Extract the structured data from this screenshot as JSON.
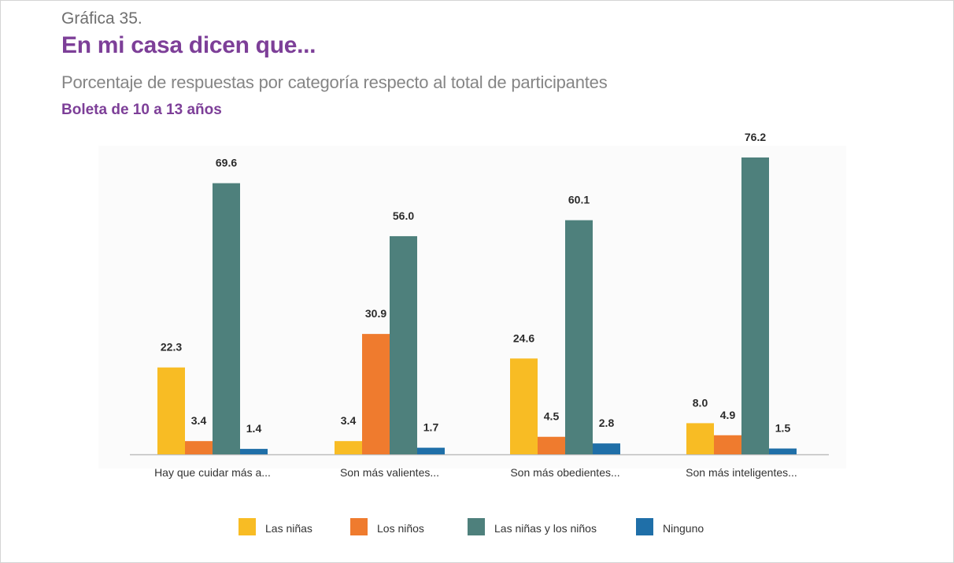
{
  "header": {
    "figure_number": "Gráfica 35.",
    "title": "En mi casa dicen que...",
    "subtitle": "Porcentaje de respuestas por categoría respecto al total de participantes",
    "subtitle2": "Boleta de 10 a 13 años"
  },
  "legend": [
    {
      "label": "Las niñas",
      "color": "#f8bc24"
    },
    {
      "label": "Los niños",
      "color": "#ef7b2e"
    },
    {
      "label": "Las niñas y los niños",
      "color": "#4e807c"
    },
    {
      "label": "Ninguno",
      "color": "#1f6fa8"
    }
  ],
  "chart_data": {
    "type": "bar",
    "title": "En mi casa dicen que...",
    "subtitle": "Porcentaje de respuestas por categoría respecto al total de participantes",
    "categories": [
      "Hay que cuidar más a...",
      "Son más valientes...",
      "Son más obedientes...",
      "Son más inteligentes..."
    ],
    "series": [
      {
        "name": "Las niñas",
        "color": "#f8bc24",
        "values": [
          22.3,
          3.4,
          24.6,
          8.0
        ]
      },
      {
        "name": "Los niños",
        "color": "#ef7b2e",
        "values": [
          3.4,
          30.9,
          4.5,
          4.9
        ]
      },
      {
        "name": "Las niñas y los niños",
        "color": "#4e807c",
        "values": [
          69.6,
          56.0,
          60.1,
          76.2
        ]
      },
      {
        "name": "Ninguno",
        "color": "#1f6fa8",
        "values": [
          1.4,
          1.7,
          2.8,
          1.5
        ]
      }
    ],
    "ylim": [
      0,
      80
    ],
    "grid": false,
    "legend_position": "bottom"
  }
}
